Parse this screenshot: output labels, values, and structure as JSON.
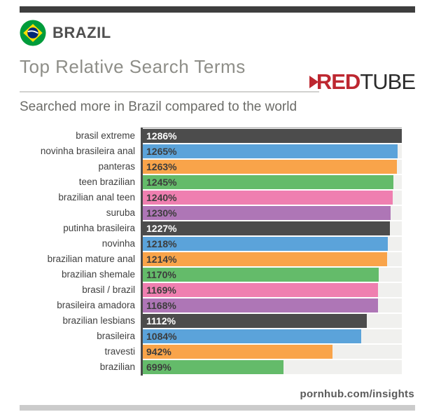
{
  "header": {
    "country": "BRAZIL"
  },
  "title": "Top Relative Search Terms",
  "subtitle": "Searched more in Brazil compared to the world",
  "brand": {
    "red": "RED",
    "tube": "TUBE",
    "red_color": "#bd2730",
    "tube_color": "#2b2b2b"
  },
  "footer": {
    "site": "pornhub.com/insights"
  },
  "colors": {
    "accent_strip": "#3e3e3e",
    "bottom_strip": "#cbcbcb",
    "axis": "#4b4b4b",
    "track": "#f0f0ee",
    "dark_bar_text": "#ffffff",
    "light_bar_text": "#3c3c3c",
    "flag_green": "#009c3b",
    "flag_yellow": "#fedf00",
    "flag_blue": "#002776"
  },
  "chart_data": {
    "type": "bar",
    "orientation": "horizontal",
    "title": "Top Relative Search Terms",
    "subtitle": "Searched more in Brazil compared to the world",
    "categories": [
      "brasil extreme",
      "novinha brasileira anal",
      "panteras",
      "teen brazilian",
      "brazilian anal teen",
      "suruba",
      "putinha brasileira",
      "novinha",
      "brazilian mature anal",
      "brazilian shemale",
      "brasil / brazil",
      "brasileira amadora",
      "brazilian lesbians",
      "brasileira",
      "travesti",
      "brazilian"
    ],
    "values": [
      1286,
      1265,
      1263,
      1245,
      1240,
      1230,
      1227,
      1218,
      1214,
      1170,
      1169,
      1168,
      1112,
      1084,
      942,
      699
    ],
    "value_labels": [
      "1286%",
      "1265%",
      "1263%",
      "1245%",
      "1240%",
      "1230%",
      "1227%",
      "1218%",
      "1214%",
      "1170%",
      "1169%",
      "1168%",
      "1112%",
      "1084%",
      "942%",
      "699%"
    ],
    "bar_colors": [
      "#4c4c4c",
      "#5ba3da",
      "#f9a44a",
      "#64bb6a",
      "#ef7fb0",
      "#ae76b6",
      "#4c4c4c",
      "#5ba3da",
      "#f9a44a",
      "#64bb6a",
      "#ef7fb0",
      "#ae76b6",
      "#4c4c4c",
      "#5ba3da",
      "#f9a44a",
      "#64bb6a"
    ],
    "xlim": [
      0,
      1286
    ],
    "grid": false,
    "legend": false
  }
}
